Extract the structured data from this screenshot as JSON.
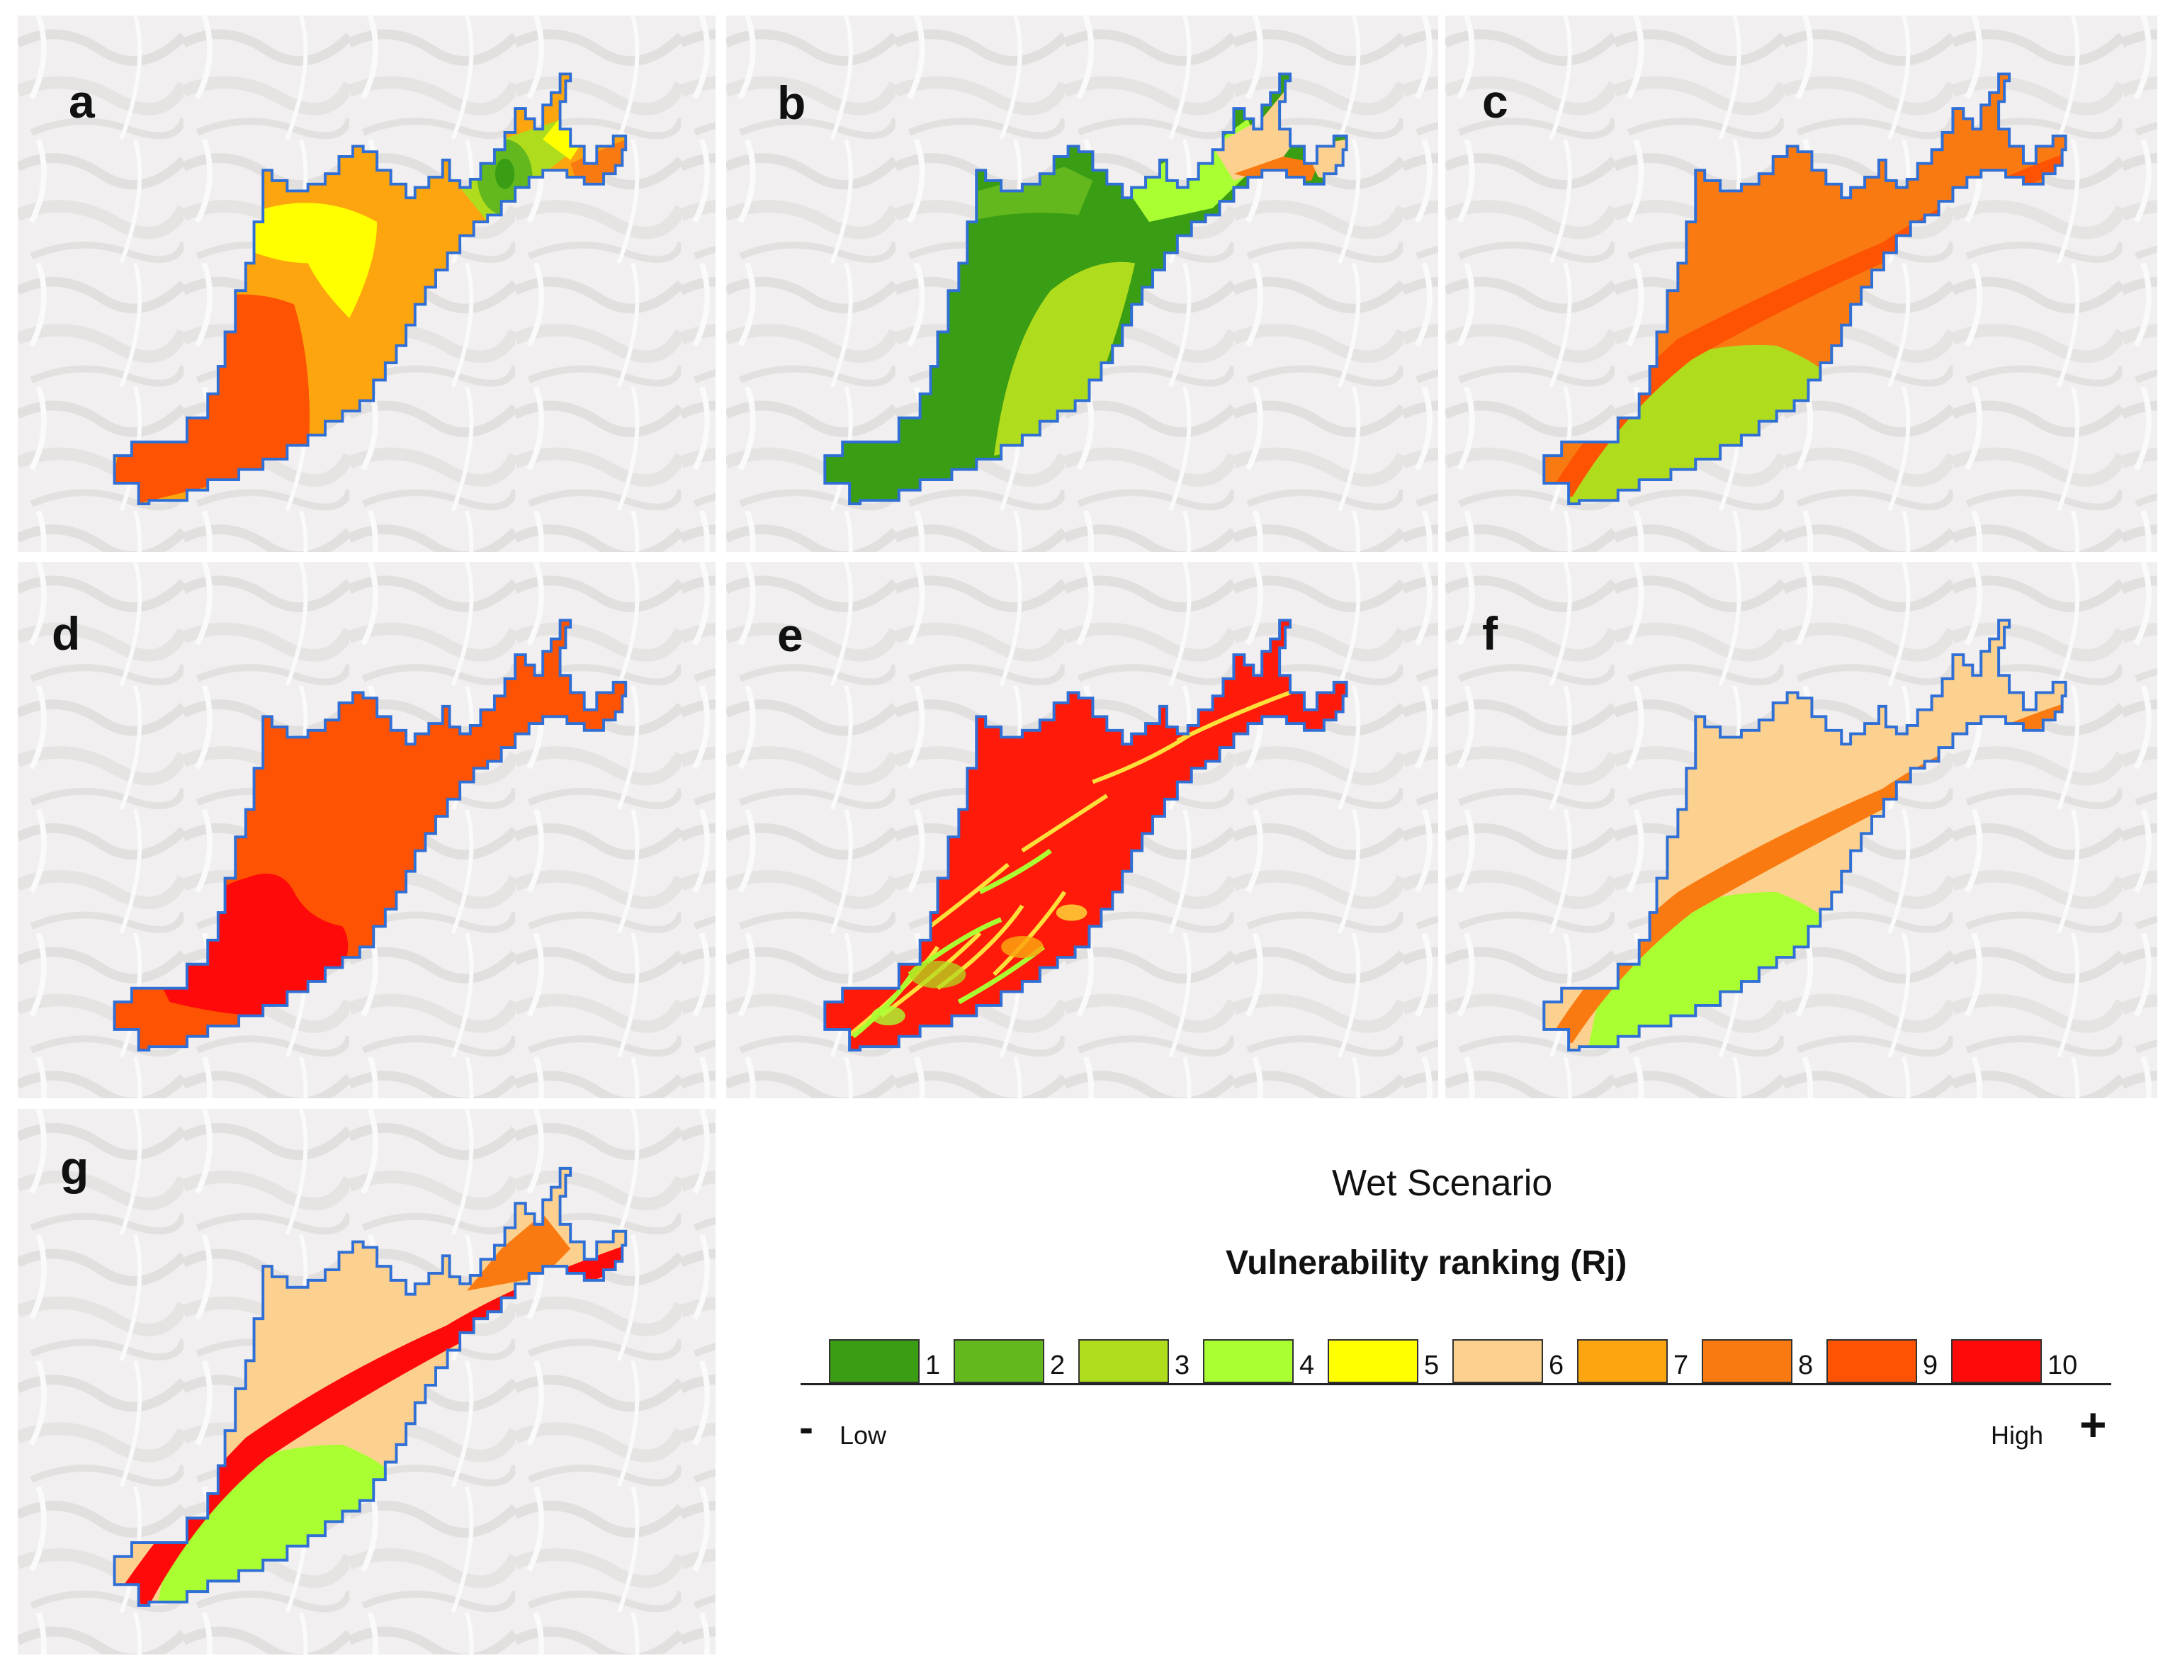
{
  "panels": [
    {
      "label": "a"
    },
    {
      "label": "b"
    },
    {
      "label": "c"
    },
    {
      "label": "d"
    },
    {
      "label": "e"
    },
    {
      "label": "f"
    },
    {
      "label": "g"
    }
  ],
  "legend": {
    "scenario": "Wet Scenario",
    "title": "Vulnerability ranking (Rj)",
    "classes": [
      {
        "rank": "1",
        "color": "#3a9e14"
      },
      {
        "rank": "2",
        "color": "#62b81c"
      },
      {
        "rank": "3",
        "color": "#b0dc1e"
      },
      {
        "rank": "4",
        "color": "#aaff33"
      },
      {
        "rank": "5",
        "color": "#ffff00"
      },
      {
        "rank": "6",
        "color": "#fcd08e"
      },
      {
        "rank": "7",
        "color": "#fca50e"
      },
      {
        "rank": "8",
        "color": "#fa7a12"
      },
      {
        "rank": "9",
        "color": "#fd5303"
      },
      {
        "rank": "10",
        "color": "#ff0a0a"
      }
    ],
    "low_sign": "-",
    "low_label": "Low",
    "high_label": "High",
    "high_sign": "+"
  },
  "colors": {
    "boundary": "#2f6fd6",
    "hillshade": "#f1efef"
  }
}
